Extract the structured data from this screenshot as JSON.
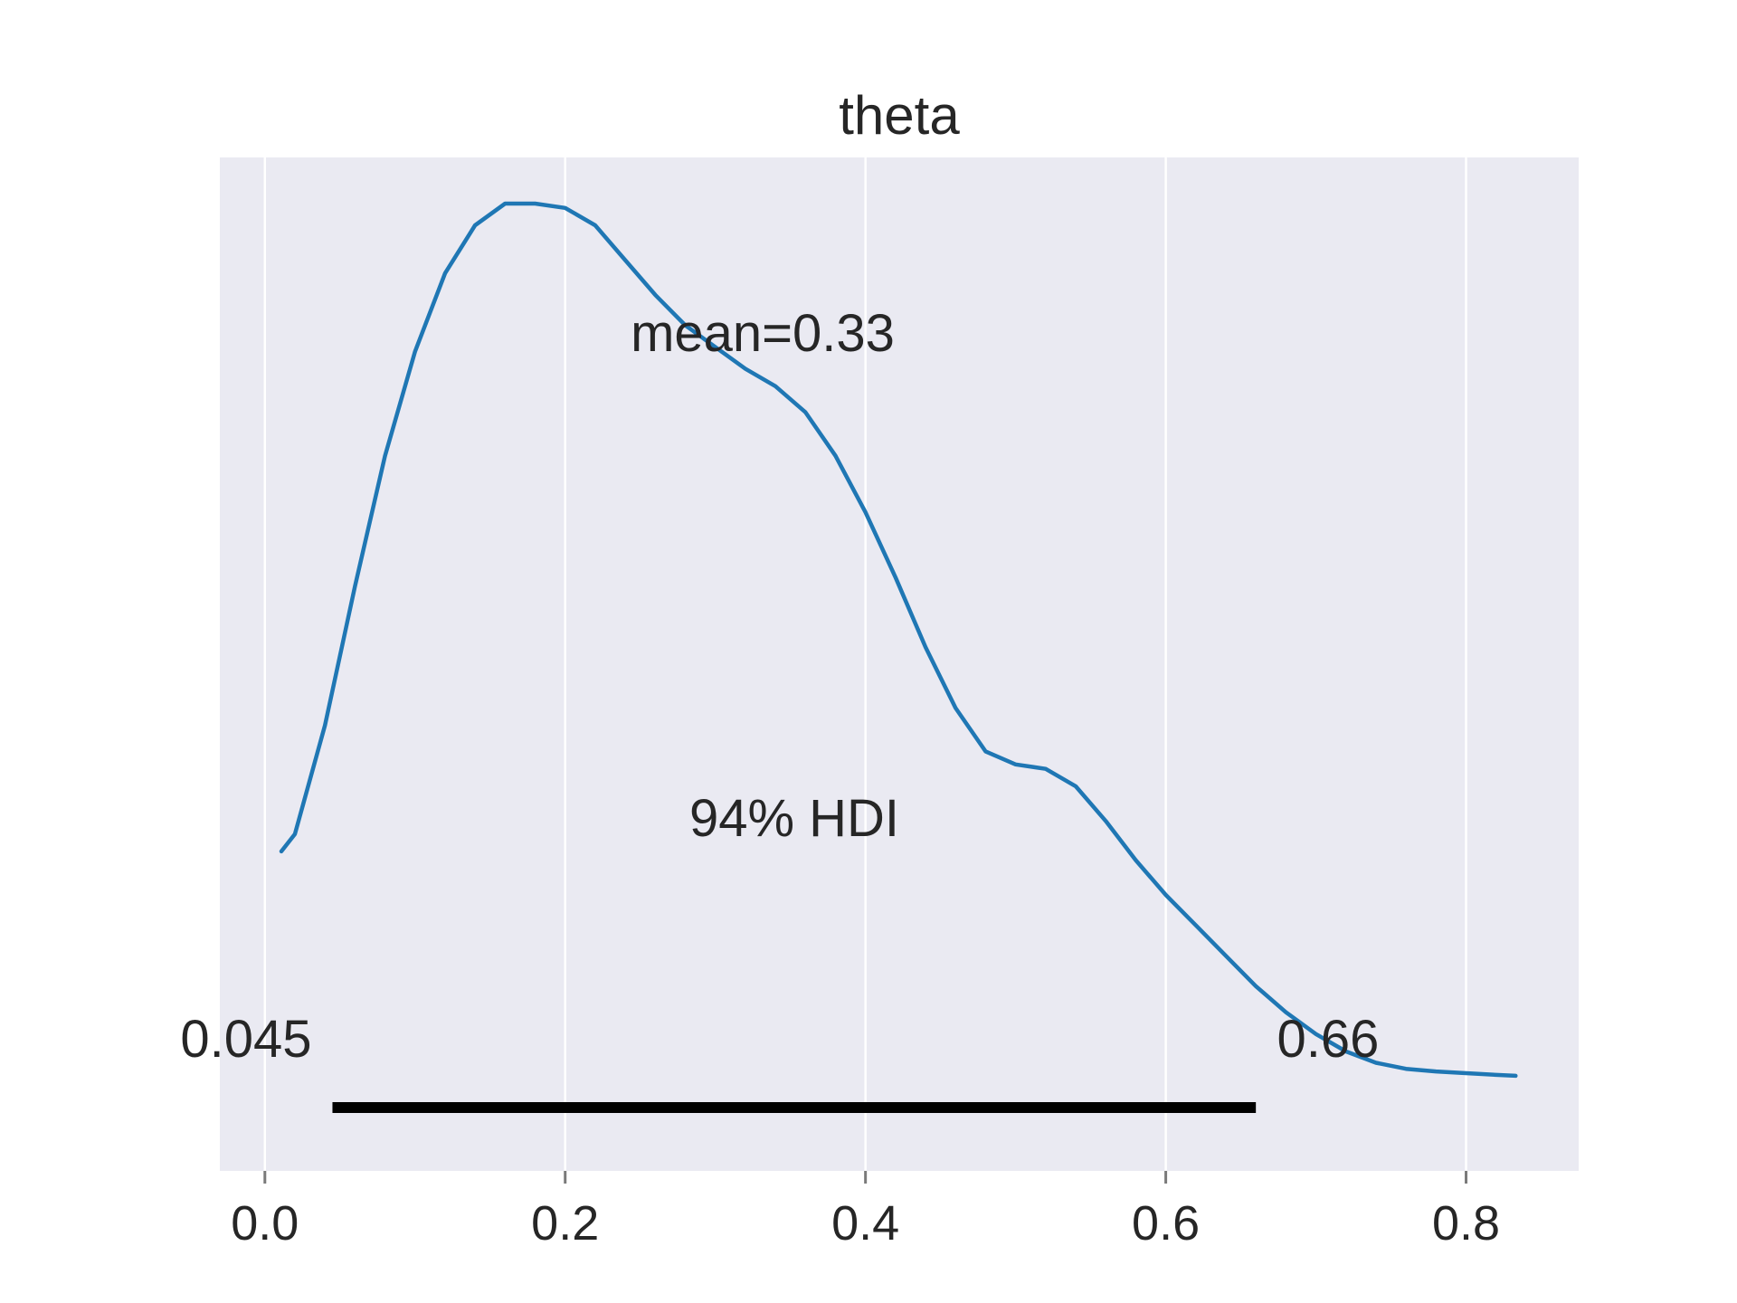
{
  "chart_data": {
    "type": "line",
    "title": "theta",
    "xlabel": "",
    "ylabel": "",
    "xlim": [
      -0.03,
      0.875
    ],
    "ylim": [
      0,
      1
    ],
    "grid": true,
    "x_ticks": [
      0.0,
      0.2,
      0.4,
      0.6,
      0.8
    ],
    "x_tick_labels": [
      "0.0",
      "0.2",
      "0.4",
      "0.6",
      "0.8"
    ],
    "series": [
      {
        "color": "#1f77b4",
        "x": [
          0.011,
          0.02,
          0.04,
          0.06,
          0.08,
          0.1,
          0.12,
          0.14,
          0.16,
          0.18,
          0.2,
          0.22,
          0.24,
          0.26,
          0.28,
          0.3,
          0.32,
          0.34,
          0.36,
          0.38,
          0.4,
          0.42,
          0.44,
          0.46,
          0.48,
          0.5,
          0.52,
          0.54,
          0.56,
          0.58,
          0.6,
          0.62,
          0.64,
          0.66,
          0.68,
          0.7,
          0.72,
          0.74,
          0.76,
          0.78,
          0.8,
          0.82,
          0.833
        ],
        "y": [
          0.255,
          0.275,
          0.4,
          0.56,
          0.71,
          0.83,
          0.92,
          0.975,
          1.0,
          1.0,
          0.995,
          0.975,
          0.935,
          0.895,
          0.86,
          0.835,
          0.81,
          0.79,
          0.76,
          0.71,
          0.645,
          0.57,
          0.49,
          0.42,
          0.37,
          0.355,
          0.35,
          0.33,
          0.29,
          0.245,
          0.205,
          0.17,
          0.135,
          0.1,
          0.07,
          0.045,
          0.025,
          0.012,
          0.005,
          0.002,
          0.0,
          -0.002,
          -0.003
        ]
      }
    ],
    "annotations": {
      "mean_label": "mean=0.33",
      "hdi_label": "94% HDI",
      "hdi_low": 0.045,
      "hdi_high": 0.66,
      "hdi_low_label": "0.045",
      "hdi_high_label": "0.66",
      "hdi_color": "#000000"
    },
    "background_color": "#eaeaf2",
    "grid_color": "#ffffff"
  }
}
